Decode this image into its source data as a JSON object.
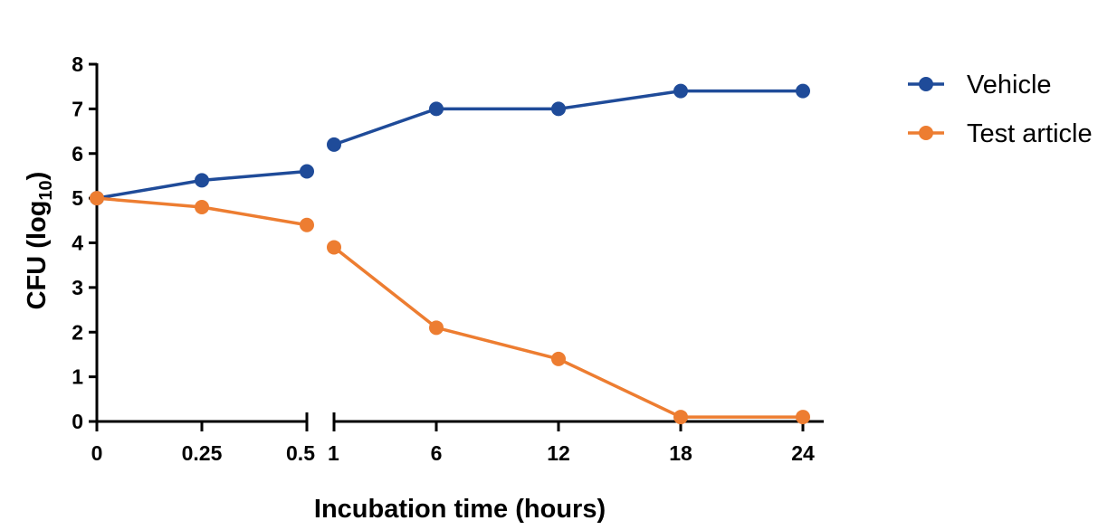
{
  "chart_data": {
    "type": "line",
    "xlabel": "Incubation time (hours)",
    "ylabel_main": "CFU (log",
    "ylabel_sub": "10",
    "ylabel_close": ")",
    "ylim": [
      0,
      8
    ],
    "y_ticks": [
      "0",
      "1",
      "2",
      "3",
      "4",
      "5",
      "6",
      "7",
      "8"
    ],
    "x_axis_break": "between 0.5 and 1",
    "categories": [
      "0",
      "0.25",
      "0.5",
      "1",
      "6",
      "12",
      "18",
      "24"
    ],
    "legend_position": "top-right",
    "series": [
      {
        "name": "Vehicle",
        "color": "#1f4b99",
        "values": [
          5.0,
          5.4,
          5.6,
          6.2,
          7.0,
          7.0,
          7.4,
          7.4
        ]
      },
      {
        "name": "Test article",
        "color": "#ed7d31",
        "values": [
          5.0,
          4.8,
          4.4,
          3.9,
          2.1,
          1.4,
          0.1,
          0.1
        ]
      }
    ]
  }
}
